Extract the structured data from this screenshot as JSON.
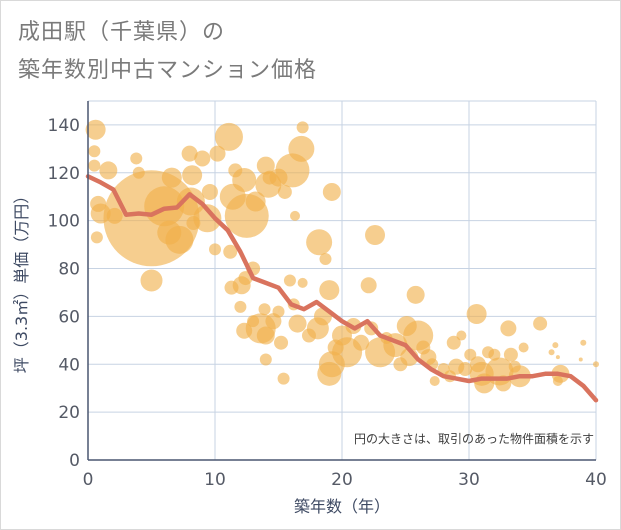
{
  "title_line1": "成田駅（千葉県）の",
  "title_line2": "築年数別中古マンション価格",
  "colors": {
    "bubble": "#f0b04a",
    "line": "#d9735e",
    "grid": "#c7d3e3",
    "axis": "#4a5670"
  },
  "chart_data": {
    "type": "scatter",
    "xlabel": "築年数（年）",
    "ylabel": "坪（3.3㎡）単価（万円）",
    "xlim": [
      0,
      40
    ],
    "ylim": [
      0,
      150
    ],
    "xticks": [
      "0",
      "10",
      "20",
      "30",
      "40"
    ],
    "yticks": [
      "0",
      "20",
      "40",
      "60",
      "80",
      "100",
      "120",
      "140"
    ],
    "grid": true,
    "note": "円の大きさは、取引のあった物件面積を示す",
    "trend_line": {
      "x": [
        0,
        1,
        2,
        3,
        4,
        5,
        6,
        7,
        8,
        9,
        10,
        11,
        12,
        13,
        14,
        15,
        16,
        17,
        18,
        19,
        20,
        21,
        22,
        23,
        24,
        25,
        26,
        27,
        28,
        29,
        30,
        31,
        32,
        33,
        34,
        35,
        36,
        37,
        38,
        39,
        40
      ],
      "y": [
        118.5,
        116,
        113,
        102.5,
        103,
        102.5,
        105,
        105.5,
        111,
        107,
        101,
        96,
        87,
        76,
        74,
        72,
        65,
        63,
        66,
        62,
        58,
        55,
        58,
        52,
        50,
        48,
        42,
        38,
        35,
        34,
        33,
        34,
        34,
        34,
        35,
        35,
        36,
        36,
        35,
        31,
        25
      ]
    },
    "bubbles": [
      {
        "x": 0.5,
        "y": 129,
        "r": 6
      },
      {
        "x": 0.6,
        "y": 138,
        "r": 10
      },
      {
        "x": 0.5,
        "y": 123,
        "r": 6
      },
      {
        "x": 0.8,
        "y": 107,
        "r": 8
      },
      {
        "x": 1.0,
        "y": 103,
        "r": 10
      },
      {
        "x": 0.7,
        "y": 93,
        "r": 6
      },
      {
        "x": 1.6,
        "y": 121,
        "r": 9
      },
      {
        "x": 2.1,
        "y": 102,
        "r": 8
      },
      {
        "x": 3.8,
        "y": 126,
        "r": 6
      },
      {
        "x": 4.0,
        "y": 120,
        "r": 6
      },
      {
        "x": 5.0,
        "y": 101,
        "r": 48
      },
      {
        "x": 6.0,
        "y": 106,
        "r": 20
      },
      {
        "x": 6.4,
        "y": 95,
        "r": 12
      },
      {
        "x": 5.0,
        "y": 75,
        "r": 11
      },
      {
        "x": 6.6,
        "y": 118,
        "r": 10
      },
      {
        "x": 7.2,
        "y": 92,
        "r": 14
      },
      {
        "x": 8.0,
        "y": 128,
        "r": 8
      },
      {
        "x": 8.2,
        "y": 119,
        "r": 10
      },
      {
        "x": 8.1,
        "y": 108,
        "r": 14
      },
      {
        "x": 8.3,
        "y": 99,
        "r": 7
      },
      {
        "x": 9.0,
        "y": 126,
        "r": 8
      },
      {
        "x": 9.4,
        "y": 101,
        "r": 14
      },
      {
        "x": 9.6,
        "y": 112,
        "r": 8
      },
      {
        "x": 10.2,
        "y": 128,
        "r": 8
      },
      {
        "x": 10.0,
        "y": 88,
        "r": 6
      },
      {
        "x": 11.1,
        "y": 135,
        "r": 14
      },
      {
        "x": 11.4,
        "y": 110,
        "r": 13
      },
      {
        "x": 11.2,
        "y": 87,
        "r": 7
      },
      {
        "x": 11.6,
        "y": 121,
        "r": 7
      },
      {
        "x": 12.3,
        "y": 117,
        "r": 12
      },
      {
        "x": 12.5,
        "y": 102,
        "r": 22
      },
      {
        "x": 12.4,
        "y": 76,
        "r": 7
      },
      {
        "x": 11.3,
        "y": 72,
        "r": 7
      },
      {
        "x": 12.1,
        "y": 73,
        "r": 9
      },
      {
        "x": 13.0,
        "y": 80,
        "r": 7
      },
      {
        "x": 13.2,
        "y": 108,
        "r": 10
      },
      {
        "x": 14.0,
        "y": 123,
        "r": 9
      },
      {
        "x": 14.3,
        "y": 118,
        "r": 7
      },
      {
        "x": 14.2,
        "y": 115,
        "r": 13
      },
      {
        "x": 15.0,
        "y": 118,
        "r": 9
      },
      {
        "x": 16.1,
        "y": 121,
        "r": 17
      },
      {
        "x": 15.5,
        "y": 112,
        "r": 7
      },
      {
        "x": 16.3,
        "y": 102,
        "r": 5
      },
      {
        "x": 16.8,
        "y": 130,
        "r": 13
      },
      {
        "x": 16.9,
        "y": 139,
        "r": 6
      },
      {
        "x": 18.2,
        "y": 91,
        "r": 13
      },
      {
        "x": 18.7,
        "y": 84,
        "r": 6
      },
      {
        "x": 19.2,
        "y": 112,
        "r": 9
      },
      {
        "x": 12.0,
        "y": 64,
        "r": 6
      },
      {
        "x": 12.3,
        "y": 54,
        "r": 8
      },
      {
        "x": 13.0,
        "y": 58,
        "r": 6
      },
      {
        "x": 13.6,
        "y": 55,
        "r": 15
      },
      {
        "x": 13.9,
        "y": 63,
        "r": 6
      },
      {
        "x": 14.0,
        "y": 52,
        "r": 9
      },
      {
        "x": 14.6,
        "y": 58,
        "r": 8
      },
      {
        "x": 15.0,
        "y": 62,
        "r": 6
      },
      {
        "x": 15.2,
        "y": 49,
        "r": 7
      },
      {
        "x": 15.9,
        "y": 75,
        "r": 6
      },
      {
        "x": 16.2,
        "y": 65,
        "r": 6
      },
      {
        "x": 16.5,
        "y": 57,
        "r": 9
      },
      {
        "x": 16.9,
        "y": 74,
        "r": 5
      },
      {
        "x": 17.4,
        "y": 52,
        "r": 7
      },
      {
        "x": 14.0,
        "y": 42,
        "r": 6
      },
      {
        "x": 15.4,
        "y": 34,
        "r": 6
      },
      {
        "x": 18.1,
        "y": 55,
        "r": 11
      },
      {
        "x": 18.5,
        "y": 60,
        "r": 9
      },
      {
        "x": 19.0,
        "y": 71,
        "r": 10
      },
      {
        "x": 19.2,
        "y": 40,
        "r": 13
      },
      {
        "x": 19.0,
        "y": 36,
        "r": 12
      },
      {
        "x": 19.5,
        "y": 47,
        "r": 8
      },
      {
        "x": 20.0,
        "y": 52,
        "r": 10
      },
      {
        "x": 20.4,
        "y": 45,
        "r": 15
      },
      {
        "x": 20.9,
        "y": 56,
        "r": 8
      },
      {
        "x": 21.5,
        "y": 49,
        "r": 8
      },
      {
        "x": 22.1,
        "y": 73,
        "r": 8
      },
      {
        "x": 22.3,
        "y": 55,
        "r": 7
      },
      {
        "x": 22.6,
        "y": 94,
        "r": 10
      },
      {
        "x": 23.0,
        "y": 45,
        "r": 15
      },
      {
        "x": 23.5,
        "y": 51,
        "r": 6
      },
      {
        "x": 24.2,
        "y": 48,
        "r": 12
      },
      {
        "x": 24.6,
        "y": 40,
        "r": 7
      },
      {
        "x": 25.1,
        "y": 56,
        "r": 10
      },
      {
        "x": 25.3,
        "y": 43,
        "r": 9
      },
      {
        "x": 25.8,
        "y": 69,
        "r": 9
      },
      {
        "x": 26.0,
        "y": 52,
        "r": 15
      },
      {
        "x": 26.4,
        "y": 47,
        "r": 7
      },
      {
        "x": 26.8,
        "y": 43,
        "r": 8
      },
      {
        "x": 27.1,
        "y": 40,
        "r": 6
      },
      {
        "x": 27.3,
        "y": 33,
        "r": 5
      },
      {
        "x": 28.0,
        "y": 38,
        "r": 6
      },
      {
        "x": 28.5,
        "y": 35,
        "r": 6
      },
      {
        "x": 28.8,
        "y": 49,
        "r": 7
      },
      {
        "x": 29.0,
        "y": 39,
        "r": 8
      },
      {
        "x": 29.4,
        "y": 52,
        "r": 5
      },
      {
        "x": 29.7,
        "y": 38,
        "r": 7
      },
      {
        "x": 30.1,
        "y": 44,
        "r": 6
      },
      {
        "x": 30.6,
        "y": 61,
        "r": 10
      },
      {
        "x": 30.7,
        "y": 40,
        "r": 8
      },
      {
        "x": 31.0,
        "y": 36,
        "r": 12
      },
      {
        "x": 31.2,
        "y": 32,
        "r": 10
      },
      {
        "x": 31.5,
        "y": 45,
        "r": 6
      },
      {
        "x": 32.0,
        "y": 44,
        "r": 6
      },
      {
        "x": 32.4,
        "y": 37,
        "r": 14
      },
      {
        "x": 32.7,
        "y": 32,
        "r": 8
      },
      {
        "x": 33.1,
        "y": 55,
        "r": 8
      },
      {
        "x": 33.3,
        "y": 44,
        "r": 7
      },
      {
        "x": 33.6,
        "y": 39,
        "r": 6
      },
      {
        "x": 34.0,
        "y": 35,
        "r": 11
      },
      {
        "x": 34.3,
        "y": 47,
        "r": 5
      },
      {
        "x": 35.6,
        "y": 57,
        "r": 7
      },
      {
        "x": 36.5,
        "y": 45,
        "r": 3
      },
      {
        "x": 36.8,
        "y": 48,
        "r": 3
      },
      {
        "x": 37.0,
        "y": 43,
        "r": 2
      },
      {
        "x": 37.2,
        "y": 36,
        "r": 9
      },
      {
        "x": 37.0,
        "y": 33,
        "r": 5
      },
      {
        "x": 39.0,
        "y": 49,
        "r": 3
      },
      {
        "x": 38.8,
        "y": 42,
        "r": 2
      },
      {
        "x": 40.0,
        "y": 40,
        "r": 3
      }
    ]
  }
}
